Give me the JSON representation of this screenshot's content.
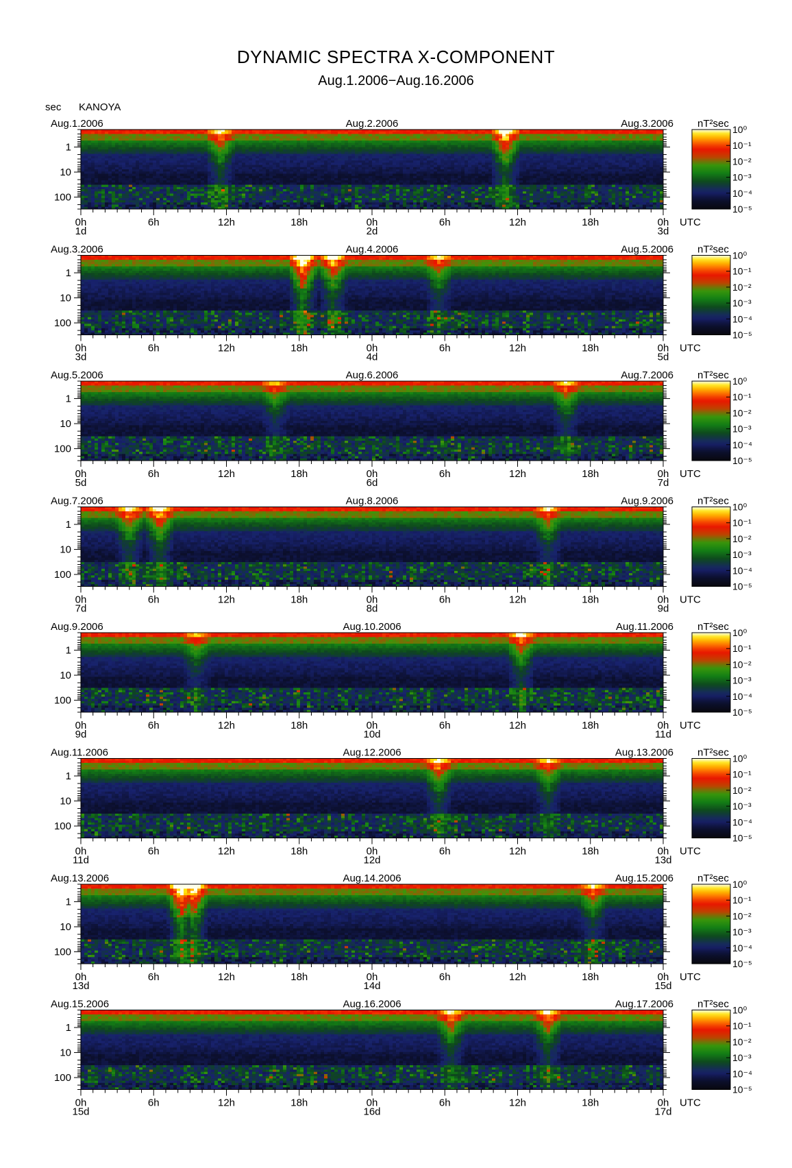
{
  "figure": {
    "title": "DYNAMIC SPECTRA X-COMPONENT",
    "subtitle": "Aug.1.2006−Aug.16.2006",
    "station": "KANOYA",
    "y_unit": "sec",
    "x_unit": "UTC",
    "colorbar_unit": "nT²sec"
  },
  "chart_data": {
    "type": "heatmap",
    "description_of_axes": {
      "x": "time (UTC), 48 hours per panel",
      "y": "period in seconds, log scale, increasing downward",
      "color": "power spectral density, log scale"
    },
    "y_ticks": [
      "1",
      "10",
      "100"
    ],
    "y_tick_values": [
      1,
      10,
      100
    ],
    "y_range": [
      0.2,
      300
    ],
    "x_tick_labels": [
      "0h",
      "6h",
      "12h",
      "18h",
      "0h",
      "6h",
      "12h",
      "18h",
      "0h"
    ],
    "x_tick_hours": [
      0,
      6,
      12,
      18,
      24,
      30,
      36,
      42,
      48
    ],
    "colorbar": {
      "tick_labels": [
        "10⁰",
        "10⁻¹",
        "10⁻²",
        "10⁻³",
        "10⁻⁴",
        "10⁻⁵"
      ],
      "exponents": [
        0,
        -1,
        -2,
        -3,
        -4,
        -5
      ],
      "colors": [
        "#fffff0",
        "#ffe100",
        "#ff9a00",
        "#ff2a00",
        "#d00000",
        "#3c6e00",
        "#00a000",
        "#0a4a0a",
        "#0a1a50",
        "#1e2a80",
        "#0a0a14"
      ]
    },
    "panels": [
      {
        "start_date": "Aug.1.2006",
        "mid_date": "Aug.2.2006",
        "end_date": "Aug.3.2006",
        "day_labels": [
          "1d",
          "2d",
          "3d"
        ],
        "events": [
          {
            "hour": 11.5,
            "strength": 0.6
          },
          {
            "hour": 35,
            "strength": 0.8
          }
        ]
      },
      {
        "start_date": "Aug.3.2006",
        "mid_date": "Aug.4.2006",
        "end_date": "Aug.5.2006",
        "day_labels": [
          "3d",
          "4d",
          "5d"
        ],
        "events": [
          {
            "hour": 18.3,
            "strength": 1.0
          },
          {
            "hour": 20.8,
            "strength": 0.7
          },
          {
            "hour": 29.5,
            "strength": 0.5
          }
        ]
      },
      {
        "start_date": "Aug.5.2006",
        "mid_date": "Aug.6.2006",
        "end_date": "Aug.7.2006",
        "day_labels": [
          "5d",
          "6d",
          "7d"
        ],
        "events": [
          {
            "hour": 16,
            "strength": 0.4
          },
          {
            "hour": 40,
            "strength": 0.5
          }
        ]
      },
      {
        "start_date": "Aug.7.2006",
        "mid_date": "Aug.8.2006",
        "end_date": "Aug.9.2006",
        "day_labels": [
          "7d",
          "8d",
          "9d"
        ],
        "events": [
          {
            "hour": 6.5,
            "strength": 0.7
          },
          {
            "hour": 4,
            "strength": 0.6
          },
          {
            "hour": 38.5,
            "strength": 0.5
          }
        ]
      },
      {
        "start_date": "Aug.9.2006",
        "mid_date": "Aug.10.2006",
        "end_date": "Aug.11.2006",
        "day_labels": [
          "9d",
          "10d",
          "11d"
        ],
        "events": [
          {
            "hour": 9.5,
            "strength": 0.4
          },
          {
            "hour": 36.3,
            "strength": 0.6
          }
        ]
      },
      {
        "start_date": "Aug.11.2006",
        "mid_date": "Aug.12.2006",
        "end_date": "Aug.13.2006",
        "day_labels": [
          "11d",
          "12d",
          "13d"
        ],
        "events": [
          {
            "hour": 29.5,
            "strength": 0.6
          },
          {
            "hour": 38.5,
            "strength": 0.5
          }
        ]
      },
      {
        "start_date": "Aug.13.2006",
        "mid_date": "Aug.14.2006",
        "end_date": "Aug.15.2006",
        "day_labels": [
          "13d",
          "14d",
          "15d"
        ],
        "events": [
          {
            "hour": 8.3,
            "strength": 1.0
          },
          {
            "hour": 9.3,
            "strength": 0.9
          },
          {
            "hour": 42.2,
            "strength": 0.5
          }
        ]
      },
      {
        "start_date": "Aug.15.2006",
        "mid_date": "Aug.16.2006",
        "end_date": "Aug.17.2006",
        "day_labels": [
          "15d",
          "16d",
          "17d"
        ],
        "events": [
          {
            "hour": 30.5,
            "strength": 0.6
          },
          {
            "hour": 38.5,
            "strength": 0.6
          }
        ]
      }
    ]
  }
}
